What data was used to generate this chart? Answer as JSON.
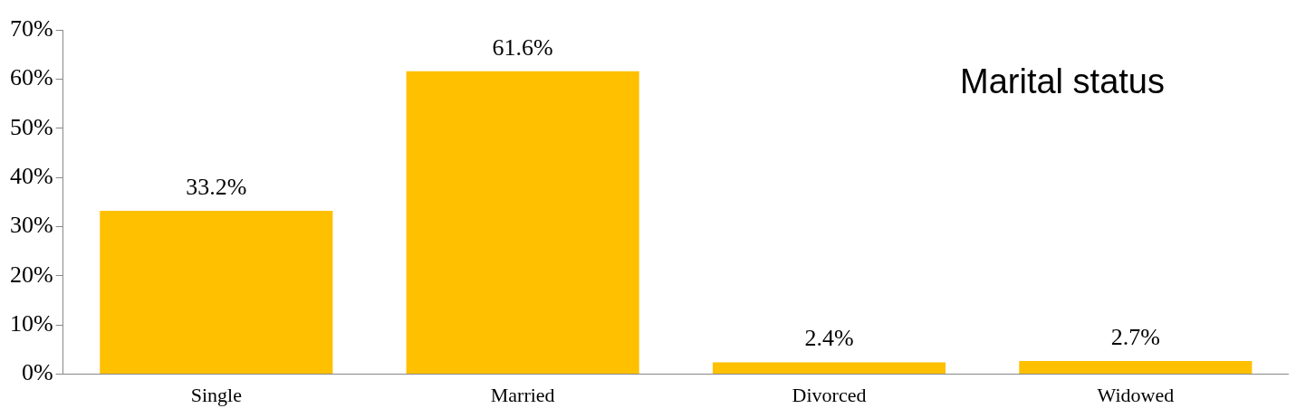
{
  "chart_data": {
    "type": "bar",
    "title": "Marital status",
    "categories": [
      "Single",
      "Married",
      "Divorced",
      "Widowed"
    ],
    "values": [
      33.2,
      61.6,
      2.4,
      2.7
    ],
    "value_labels": [
      "33.2%",
      "61.6%",
      "2.4%",
      "2.7%"
    ],
    "color": "#ffc000",
    "ylim": [
      0,
      70
    ],
    "yticks": [
      {
        "value": 0,
        "label": "0%"
      },
      {
        "value": 10,
        "label": "10%"
      },
      {
        "value": 20,
        "label": "20%"
      },
      {
        "value": 30,
        "label": "30%"
      },
      {
        "value": 40,
        "label": "40%"
      },
      {
        "value": 50,
        "label": "50%"
      },
      {
        "value": 60,
        "label": "60%"
      },
      {
        "value": 70,
        "label": "70%"
      }
    ],
    "grid": false,
    "legend": false
  }
}
